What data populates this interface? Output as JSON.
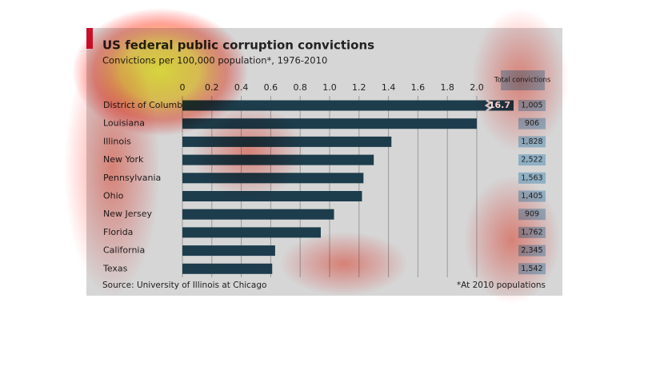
{
  "chart_data": {
    "type": "bar",
    "orientation": "horizontal",
    "title": "US federal public corruption convictions",
    "subtitle": "Convictions per 100,000 population*, 1976-2010",
    "categories": [
      "District of Columbia",
      "Louisiana",
      "Illinois",
      "New York",
      "Pennsylvania",
      "Ohio",
      "New Jersey",
      "Florida",
      "California",
      "Texas"
    ],
    "values": [
      16.7,
      2.0,
      1.42,
      1.3,
      1.23,
      1.22,
      1.03,
      0.94,
      0.63,
      0.61
    ],
    "value_labels": [
      "16.7",
      null,
      null,
      null,
      null,
      null,
      null,
      null,
      null,
      null
    ],
    "color": "#1d3d4c",
    "xlim": [
      0,
      2.0
    ],
    "xticks": [
      0,
      0.2,
      0.4,
      0.6,
      0.8,
      {
        "value": 1.0,
        "label": "1.0"
      },
      1.2,
      1.4,
      1.6,
      1.8,
      {
        "value": 2.0,
        "label": "2.0"
      }
    ],
    "grid": true,
    "totals_title": "Total convictions",
    "totals": [
      "1,005",
      "906",
      "1,828",
      "2,522",
      "1,563",
      "1,405",
      "909",
      "1,762",
      "2,345",
      "1,542"
    ],
    "source": "Source: University of Illinois at Chicago",
    "footnote": "*At 2010 populations"
  }
}
